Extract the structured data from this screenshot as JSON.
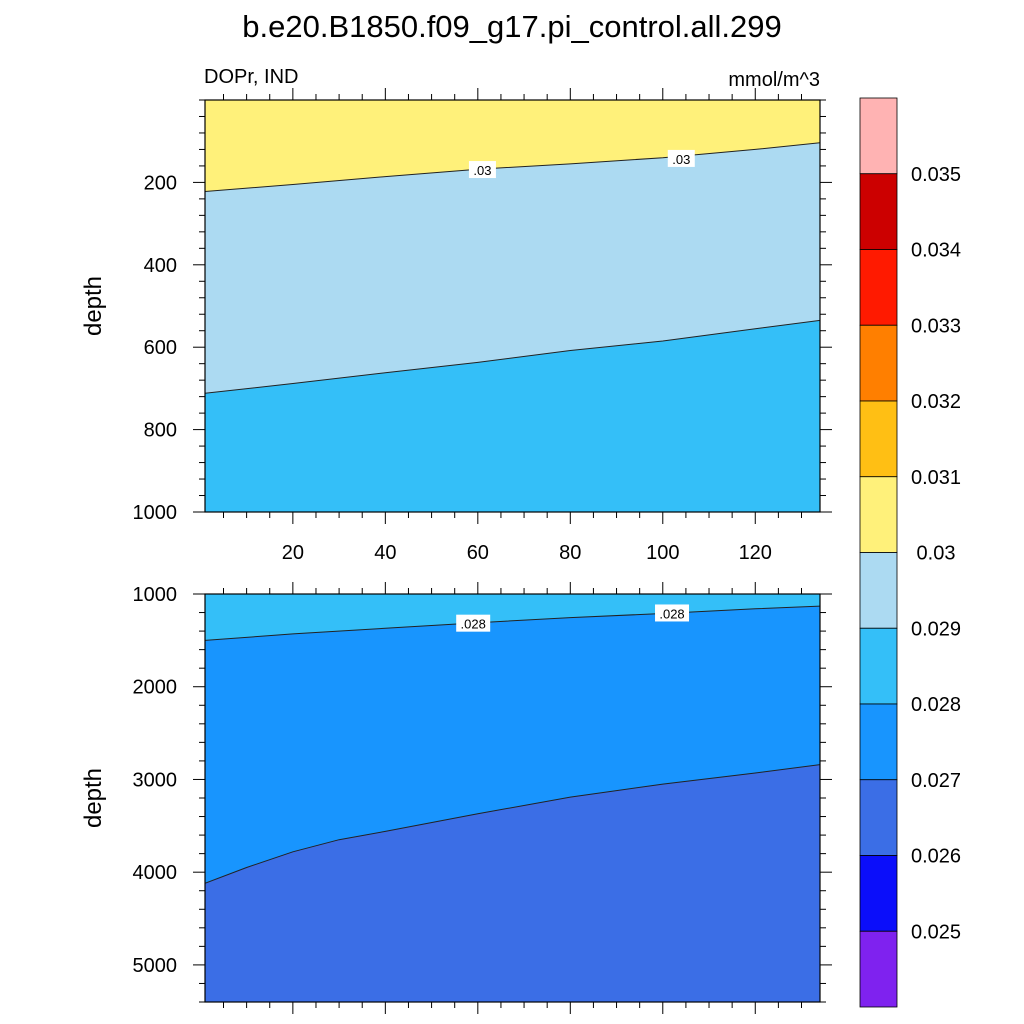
{
  "title": "b.e20.B1850.f09_g17.pi_control.all.299",
  "left_subtitle": "DOPr, IND",
  "right_subtitle": "mmol/m^3",
  "chart_data": [
    {
      "type": "contour",
      "ylabel": "depth",
      "xlim": [
        1,
        134
      ],
      "ylim": [
        1000,
        0
      ],
      "x_ticks": [
        20,
        40,
        60,
        80,
        100,
        120
      ],
      "y_ticks": [
        200,
        400,
        600,
        800,
        1000
      ],
      "contours": [
        {
          "level": 0.03,
          "label": ".03",
          "x": [
            1,
            20,
            40,
            60,
            80,
            100,
            120,
            134
          ],
          "depth": [
            222,
            205,
            186,
            168,
            155,
            140,
            120,
            104
          ]
        },
        {
          "level": 0.029,
          "label": "",
          "x": [
            1,
            20,
            40,
            60,
            80,
            100,
            120,
            134
          ],
          "depth": [
            712,
            688,
            662,
            637,
            608,
            585,
            555,
            535
          ]
        }
      ],
      "contour_labels": [
        {
          "text": ".03",
          "x": 61,
          "depth": 170
        },
        {
          "text": ".03",
          "x": 104,
          "depth": 143
        }
      ],
      "bands": [
        {
          "range": "0.030-0.031",
          "color": "#fff17a"
        },
        {
          "range": "0.029-0.030",
          "color": "#acdaf2"
        },
        {
          "range": "0.028-0.029",
          "color": "#34bff8"
        }
      ]
    },
    {
      "type": "contour",
      "ylabel": "depth",
      "xlim": [
        1,
        134
      ],
      "ylim": [
        5400,
        1000
      ],
      "x_ticks": [
        20,
        40,
        60,
        80,
        100,
        120
      ],
      "y_ticks": [
        1000,
        2000,
        3000,
        4000,
        5000
      ],
      "contours": [
        {
          "level": 0.028,
          "label": ".028",
          "x": [
            1,
            20,
            40,
            60,
            80,
            100,
            120,
            134
          ],
          "depth": [
            1500,
            1430,
            1370,
            1310,
            1255,
            1210,
            1160,
            1130
          ]
        },
        {
          "level": 0.027,
          "label": "",
          "x": [
            1,
            10,
            20,
            30,
            40,
            60,
            80,
            100,
            120,
            134
          ],
          "depth": [
            4120,
            3950,
            3780,
            3650,
            3560,
            3370,
            3190,
            3050,
            2930,
            2840
          ]
        }
      ],
      "contour_labels": [
        {
          "text": ".028",
          "x": 59,
          "depth": 1320
        },
        {
          "text": ".028",
          "x": 102,
          "depth": 1210
        }
      ],
      "bands": [
        {
          "range": "0.028-0.029",
          "color": "#34bff8"
        },
        {
          "range": "0.027-0.028",
          "color": "#1895fe"
        },
        {
          "range": "0.026-0.027",
          "color": "#3b6ee6"
        }
      ]
    }
  ],
  "colorbar": {
    "labels": [
      "0.035",
      "0.034",
      "0.033",
      "0.032",
      "0.031",
      "0.03",
      "0.029",
      "0.028",
      "0.027",
      "0.026",
      "0.025"
    ],
    "colors": [
      "#ffb3b3",
      "#cc0000",
      "#ff1a00",
      "#ff7f00",
      "#ffbf14",
      "#fff17a",
      "#acdaf2",
      "#34bff8",
      "#1895fe",
      "#3b6ee6",
      "#0b0efa",
      "#7f22ef"
    ]
  }
}
